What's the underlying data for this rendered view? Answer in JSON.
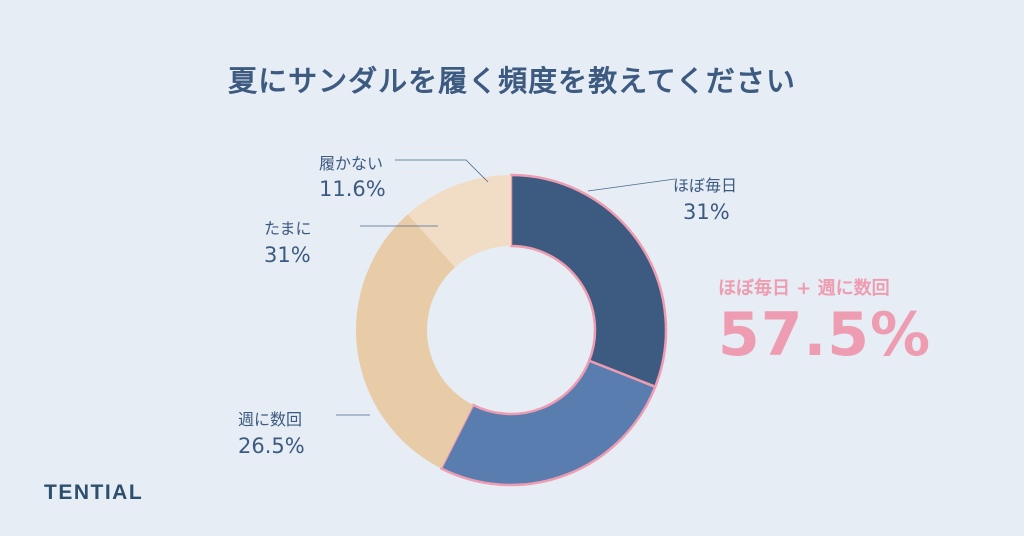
{
  "title": "夏にサンダルを履く頻度を教えてください",
  "chart_data": {
    "type": "pie",
    "donut": true,
    "title": "夏にサンダルを履く頻度を教えてください",
    "slices": [
      {
        "label": "ほぼ毎日",
        "value": 31,
        "value_label": "31%",
        "color": "#3d5a80"
      },
      {
        "label": "週に数回",
        "value": 26.5,
        "value_label": "26.5%",
        "color": "#5a7db0"
      },
      {
        "label": "たまに",
        "value": 31,
        "value_label": "31%",
        "color": "#e8cca8"
      },
      {
        "label": "履かない",
        "value": 11.6,
        "value_label": "11.6%",
        "color": "#f1ddc6"
      }
    ],
    "highlight_color": "#ee9cb1",
    "annotation": {
      "label": "ほぼ毎日 + 週に数回",
      "value": "57.5%"
    }
  },
  "brand": "TENTIAL"
}
